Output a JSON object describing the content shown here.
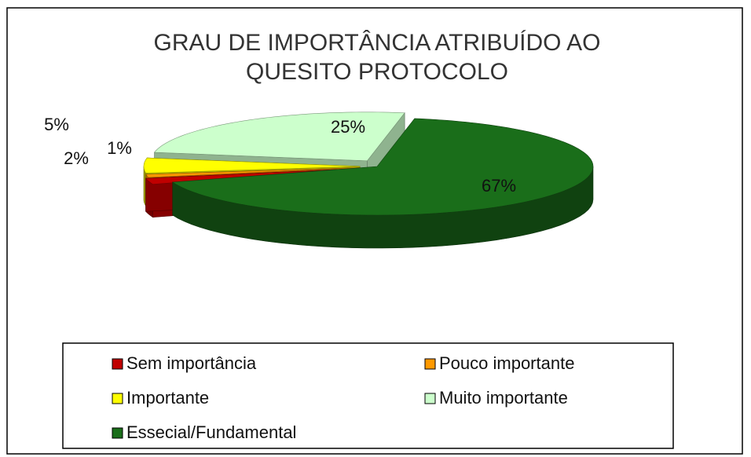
{
  "chart_data": {
    "type": "pie",
    "title": "GRAU DE IMPORTÂNCIA  ATRIBUÍDO AO QUESITO PROTOCOLO",
    "categories": [
      "Sem importância",
      "Pouco importante",
      "Importante",
      "Muito importante",
      "Essecial/Fundamental"
    ],
    "values": [
      2,
      1,
      5,
      25,
      67
    ],
    "value_labels": [
      "2%",
      "1%",
      "5%",
      "25%",
      "67%"
    ],
    "colors": [
      "#c00000",
      "#ff9900",
      "#ffff00",
      "#ccffcc",
      "#1a6e1a"
    ]
  }
}
